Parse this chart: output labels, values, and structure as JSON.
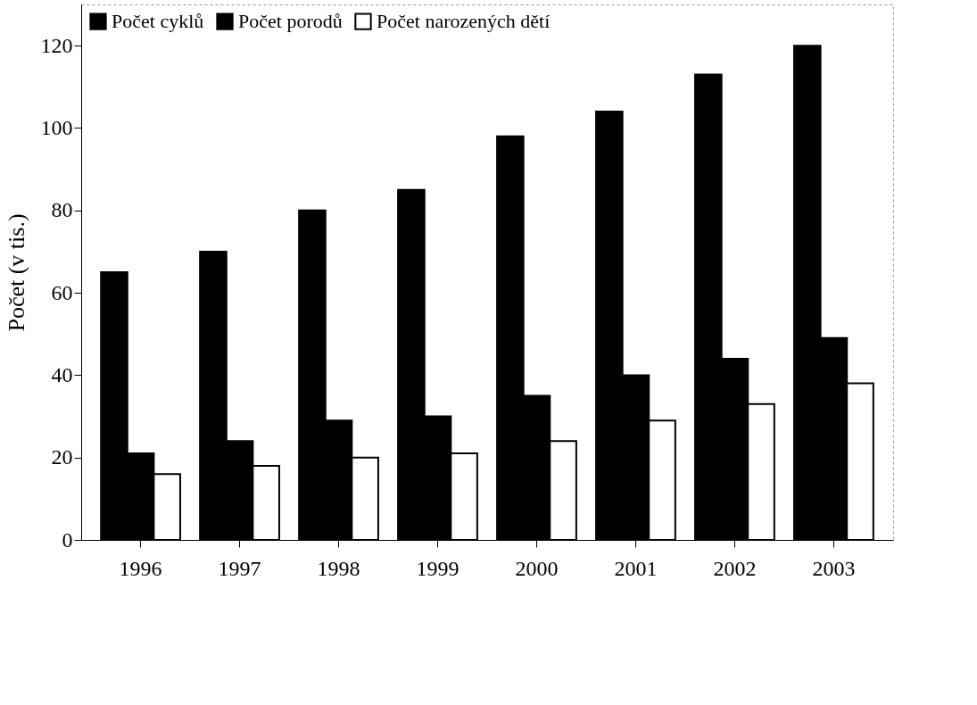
{
  "chart_data": {
    "type": "bar",
    "ylabel": "Počet (v tis.)",
    "categories": [
      "1996",
      "1997",
      "1998",
      "1999",
      "2000",
      "2001",
      "2002",
      "2003"
    ],
    "series": [
      {
        "name": "Počet cyklů",
        "color": "#000000",
        "values": [
          65,
          70,
          80,
          85,
          98,
          104,
          113,
          120
        ]
      },
      {
        "name": "Počet porodů",
        "color": "#000000",
        "values": [
          21,
          24,
          29,
          30,
          35,
          40,
          44,
          49
        ]
      },
      {
        "name": "Počet narozených dětí",
        "color": "#ffffff",
        "values": [
          16,
          18,
          20,
          21,
          24,
          29,
          33,
          38
        ]
      }
    ],
    "ylim": [
      0,
      130
    ],
    "yticks": [
      0,
      20,
      40,
      60,
      80,
      100,
      120
    ],
    "grid": false,
    "legend": "top left"
  }
}
